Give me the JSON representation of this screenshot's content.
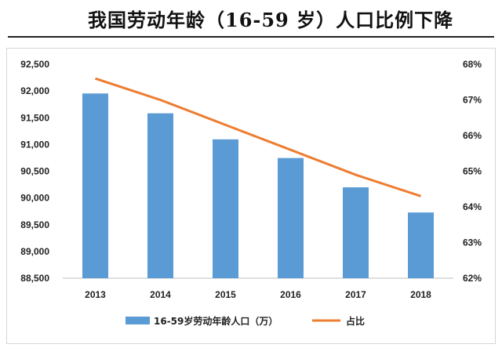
{
  "title": "我国劳动年龄（16-59 岁）人口比例下降",
  "colors": {
    "bar": "#5b9bd5",
    "line": "#ed7d31"
  },
  "chart_data": {
    "type": "bar",
    "categories": [
      "2013",
      "2014",
      "2015",
      "2016",
      "2017",
      "2018"
    ],
    "series": [
      {
        "name": "16-59岁劳动年龄人口（万）",
        "type": "bar",
        "axis": "left",
        "values": [
          91954,
          91583,
          91096,
          90747,
          90199,
          89729
        ]
      },
      {
        "name": "占比",
        "type": "line",
        "axis": "right",
        "values": [
          0.676,
          0.67,
          0.663,
          0.656,
          0.649,
          0.643
        ]
      }
    ],
    "y_left": {
      "ylim": [
        88500,
        92500
      ],
      "ticks": [
        "88,500",
        "89,000",
        "89,500",
        "90,000",
        "90,500",
        "91,000",
        "91,500",
        "92,000",
        "92,500"
      ],
      "tick_values": [
        88500,
        89000,
        89500,
        90000,
        90500,
        91000,
        91500,
        92000,
        92500
      ]
    },
    "y_right": {
      "ylim": [
        0.62,
        0.68
      ],
      "ticks": [
        "62%",
        "63%",
        "64%",
        "65%",
        "66%",
        "67%",
        "68%"
      ],
      "tick_values": [
        0.62,
        0.63,
        0.64,
        0.65,
        0.66,
        0.67,
        0.68
      ]
    },
    "legend_position": "bottom",
    "grid": false
  }
}
